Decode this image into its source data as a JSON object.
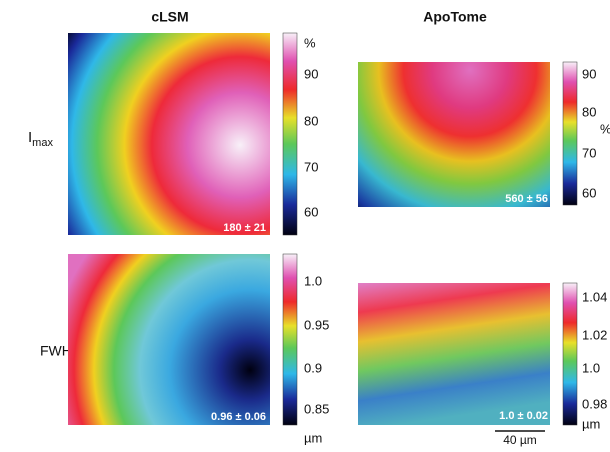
{
  "columns": [
    "cLSM",
    "ApoTome"
  ],
  "rows": [
    {
      "label": "I",
      "subscript": "max"
    },
    {
      "label": "FWHM"
    }
  ],
  "panels": [
    {
      "annotation": "180 ± 21",
      "colorbar": {
        "unit": "%",
        "ticks": [
          "90",
          "80",
          "70",
          "60"
        ]
      }
    },
    {
      "annotation": "560 ± 56",
      "colorbar": {
        "unit": "%",
        "ticks": [
          "90",
          "80",
          "70",
          "60"
        ]
      }
    },
    {
      "annotation": "0.96 ± 0.06",
      "colorbar": {
        "unit": "µm",
        "ticks": [
          "1.0",
          "0.95",
          "0.9",
          "0.85"
        ]
      }
    },
    {
      "annotation": "1.0 ± 0.02",
      "colorbar": {
        "unit": "µm",
        "ticks": [
          "1.04",
          "1.02",
          "1.0",
          "0.98"
        ]
      }
    }
  ],
  "scale_bar": "40 µm"
}
